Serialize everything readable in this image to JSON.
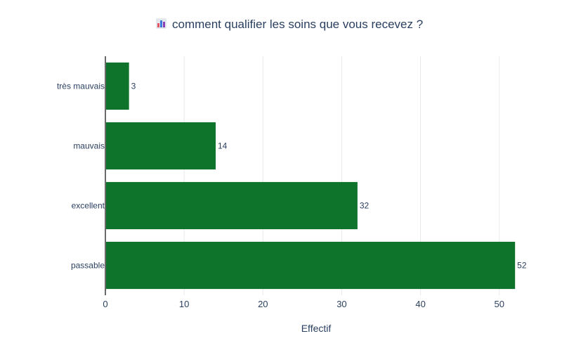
{
  "chart_data": {
    "type": "bar",
    "orientation": "horizontal",
    "title": "comment qualifier les soins que vous recevez ?",
    "title_icon": "bar-chart-icon",
    "categories": [
      "très mauvais",
      "mauvais",
      "excellent",
      "passable"
    ],
    "values": [
      3,
      14,
      32,
      52
    ],
    "data_labels": [
      "3",
      "14",
      "32",
      "52"
    ],
    "xlabel": "Effectif",
    "ylabel": "",
    "xlim": [
      0,
      53.5
    ],
    "x_ticks": [
      0,
      10,
      20,
      30,
      40,
      50
    ],
    "x_tick_labels": [
      "0",
      "10",
      "20",
      "30",
      "40",
      "50"
    ],
    "grid": true,
    "legend": false,
    "colors": {
      "bar": "#0e742c",
      "grid": "#e7e9ee",
      "axis": "#6b6b6b",
      "text": "#2a3f5f"
    }
  }
}
